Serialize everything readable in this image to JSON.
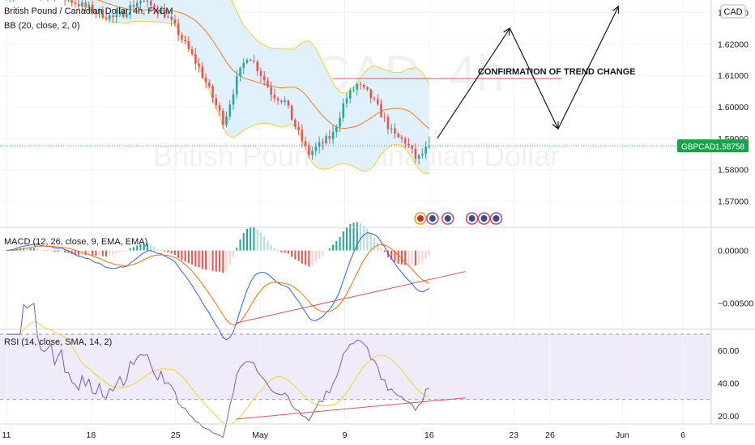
{
  "header": {
    "symbol_title": "British Pound / Canadian Dollar, 4h, FXCM",
    "bb_indicator": "BB (20, close, 2, 0)",
    "currency_badge": "CAD"
  },
  "watermark": {
    "ticker": "GBPCAD, 4h",
    "name": "British Pound / Canadian Dollar"
  },
  "price_tag": {
    "symbol": "GBPCAD",
    "value": "1.58758"
  },
  "colors": {
    "up": "#26a69a",
    "down": "#ef5350",
    "bb_band": "#f2d230",
    "bb_fill": "#e1f1fb",
    "bb_basis": "#f57c1f",
    "macd_line": "#2962ff",
    "signal_line": "#ff6d00",
    "rsi_line": "#7e57c2",
    "rsi_ma": "#f2d230",
    "rsi_fill": "#f0ebf9",
    "trend": "#e8505b",
    "price_line": "#26a69a",
    "badge_green": "#16a34a"
  },
  "annotations": {
    "trend_change": "CONFIRMATION OF TREND CHANGE"
  },
  "chart_data": [
    {
      "type": "line",
      "panel": "price",
      "title": "British Pound / Canadian Dollar, 4h, FXCM",
      "y_ticks": [
        "1.63000",
        "1.62000",
        "1.61000",
        "1.60000",
        "1.59000",
        "1.58000",
        "1.57000"
      ],
      "ylim": [
        1.565,
        1.634
      ],
      "x_ticks": [
        "11",
        "18",
        "25",
        "May",
        "9",
        "16",
        "23",
        "26",
        "Jun",
        "6"
      ],
      "last_price": 1.58758,
      "close_path": [
        [
          "Apr 11",
          1.636
        ],
        [
          "Apr 15",
          1.636
        ],
        [
          "Apr 18",
          1.631
        ],
        [
          "Apr 20",
          1.628
        ],
        [
          "Apr 22",
          1.634
        ],
        [
          "Apr 24",
          1.63
        ],
        [
          "Apr 25",
          1.625
        ],
        [
          "Apr 27",
          1.612
        ],
        [
          "Apr 29",
          1.595
        ],
        [
          "Apr 30",
          1.608
        ],
        [
          "May 1",
          1.617
        ],
        [
          "May 2",
          1.611
        ],
        [
          "May 3",
          1.604
        ],
        [
          "May 4",
          1.602
        ],
        [
          "May 5",
          1.593
        ],
        [
          "May 6",
          1.585
        ],
        [
          "May 7",
          1.588
        ],
        [
          "May 8",
          1.591
        ],
        [
          "May 9",
          1.602
        ],
        [
          "May 10",
          1.607
        ],
        [
          "May 11",
          1.604
        ],
        [
          "May 12",
          1.598
        ],
        [
          "May 13",
          1.591
        ],
        [
          "May 14",
          1.589
        ],
        [
          "May 15",
          1.583
        ],
        [
          "May 16",
          1.5876
        ]
      ],
      "projection": [
        [
          "May 16",
          1.59
        ],
        [
          "May 22",
          1.625
        ],
        [
          "May 26",
          1.593
        ],
        [
          "May 31",
          1.632
        ]
      ],
      "annotation": {
        "text": "CONFIRMATION OF TREND CHANGE",
        "level": 1.609
      }
    },
    {
      "type": "bar",
      "panel": "macd",
      "title": "MACD (12, 26, close, 9, EMA, EMA)",
      "y_ticks": [
        "0.00000",
        "−0.00500"
      ],
      "ylim": [
        -0.0075,
        0.0022
      ]
    },
    {
      "type": "line",
      "panel": "rsi",
      "title": "RSI (14, close, SMA, 14, 2)",
      "y_ticks": [
        "60.00",
        "40.00",
        "20.00"
      ],
      "ylim": [
        15,
        73
      ],
      "band": [
        30,
        70
      ]
    }
  ]
}
